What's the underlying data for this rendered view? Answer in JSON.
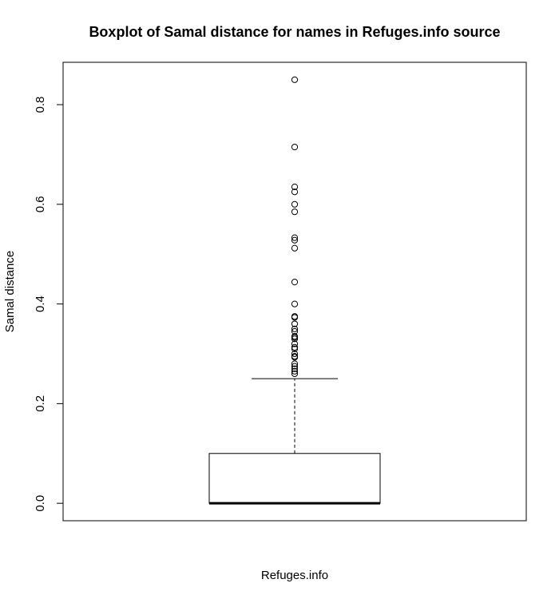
{
  "chart_data": {
    "type": "boxplot",
    "title": "Boxplot of Samal distance for names in Refuges.info source",
    "xlabel": "Refuges.info",
    "ylabel": "Samal distance",
    "ylim": [
      -0.035,
      0.885
    ],
    "yticks": [
      0.0,
      0.2,
      0.4,
      0.6,
      0.8
    ],
    "ytick_labels": [
      "0.0",
      "0.2",
      "0.4",
      "0.6",
      "0.8"
    ],
    "box": {
      "min": 0.0,
      "q1": 0.0,
      "median": 0.0,
      "q3": 0.1,
      "upper_whisker": 0.25
    },
    "outliers": [
      0.85,
      0.715,
      0.635,
      0.625,
      0.6,
      0.585,
      0.533,
      0.528,
      0.512,
      0.444,
      0.4,
      0.375,
      0.373,
      0.36,
      0.35,
      0.345,
      0.335,
      0.333,
      0.33,
      0.32,
      0.313,
      0.31,
      0.3,
      0.295,
      0.293,
      0.28,
      0.275,
      0.27,
      0.265,
      0.26
    ],
    "grid": false
  }
}
